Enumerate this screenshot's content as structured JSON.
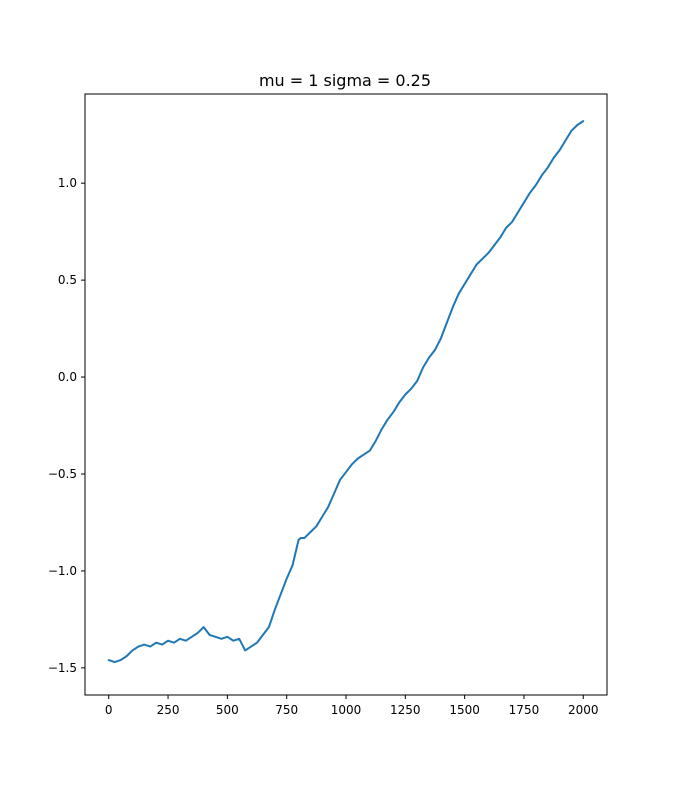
{
  "chart_data": {
    "type": "line",
    "title": "mu = 1 sigma = 0.25",
    "xlabel": "",
    "ylabel": "",
    "xlim": [
      -100,
      2100
    ],
    "ylim": [
      -1.64,
      1.46
    ],
    "x_ticks": [
      0,
      250,
      500,
      750,
      1000,
      1250,
      1500,
      1750,
      2000
    ],
    "x_tick_labels": [
      "0",
      "250",
      "500",
      "750",
      "1000",
      "1250",
      "1500",
      "1750",
      "2000"
    ],
    "y_ticks": [
      -1.5,
      -1.0,
      -0.5,
      0.0,
      0.5,
      1.0
    ],
    "y_tick_labels": [
      "−1.5",
      "−1.0",
      "−0.5",
      "0.0",
      "0.5",
      "1.0"
    ],
    "grid": false,
    "legend": "none",
    "series": [
      {
        "color": "#1f77b4",
        "x": [
          0,
          25,
          50,
          75,
          100,
          125,
          150,
          175,
          200,
          225,
          250,
          275,
          300,
          325,
          350,
          375,
          400,
          425,
          450,
          475,
          500,
          525,
          550,
          575,
          600,
          625,
          650,
          675,
          700,
          725,
          750,
          775,
          800,
          810,
          825,
          850,
          875,
          900,
          925,
          950,
          975,
          1000,
          1025,
          1050,
          1075,
          1100,
          1125,
          1150,
          1175,
          1200,
          1225,
          1250,
          1275,
          1300,
          1325,
          1350,
          1375,
          1400,
          1425,
          1450,
          1475,
          1500,
          1525,
          1550,
          1575,
          1600,
          1625,
          1650,
          1675,
          1700,
          1725,
          1750,
          1775,
          1800,
          1825,
          1850,
          1875,
          1900,
          1925,
          1950,
          1975,
          2000
        ],
        "values": [
          -1.46,
          -1.47,
          -1.46,
          -1.44,
          -1.41,
          -1.39,
          -1.38,
          -1.39,
          -1.37,
          -1.38,
          -1.36,
          -1.37,
          -1.35,
          -1.36,
          -1.34,
          -1.32,
          -1.29,
          -1.33,
          -1.34,
          -1.35,
          -1.34,
          -1.36,
          -1.35,
          -1.41,
          -1.39,
          -1.37,
          -1.33,
          -1.29,
          -1.2,
          -1.12,
          -1.04,
          -0.97,
          -0.84,
          -0.83,
          -0.83,
          -0.8,
          -0.77,
          -0.72,
          -0.67,
          -0.6,
          -0.53,
          -0.49,
          -0.45,
          -0.42,
          -0.4,
          -0.38,
          -0.33,
          -0.27,
          -0.22,
          -0.18,
          -0.13,
          -0.09,
          -0.06,
          -0.02,
          0.05,
          0.1,
          0.14,
          0.2,
          0.28,
          0.36,
          0.43,
          0.48,
          0.53,
          0.58,
          0.61,
          0.64,
          0.68,
          0.72,
          0.77,
          0.8,
          0.85,
          0.9,
          0.95,
          0.99,
          1.04,
          1.08,
          1.13,
          1.17,
          1.22,
          1.27,
          1.3,
          1.32
        ]
      }
    ]
  }
}
